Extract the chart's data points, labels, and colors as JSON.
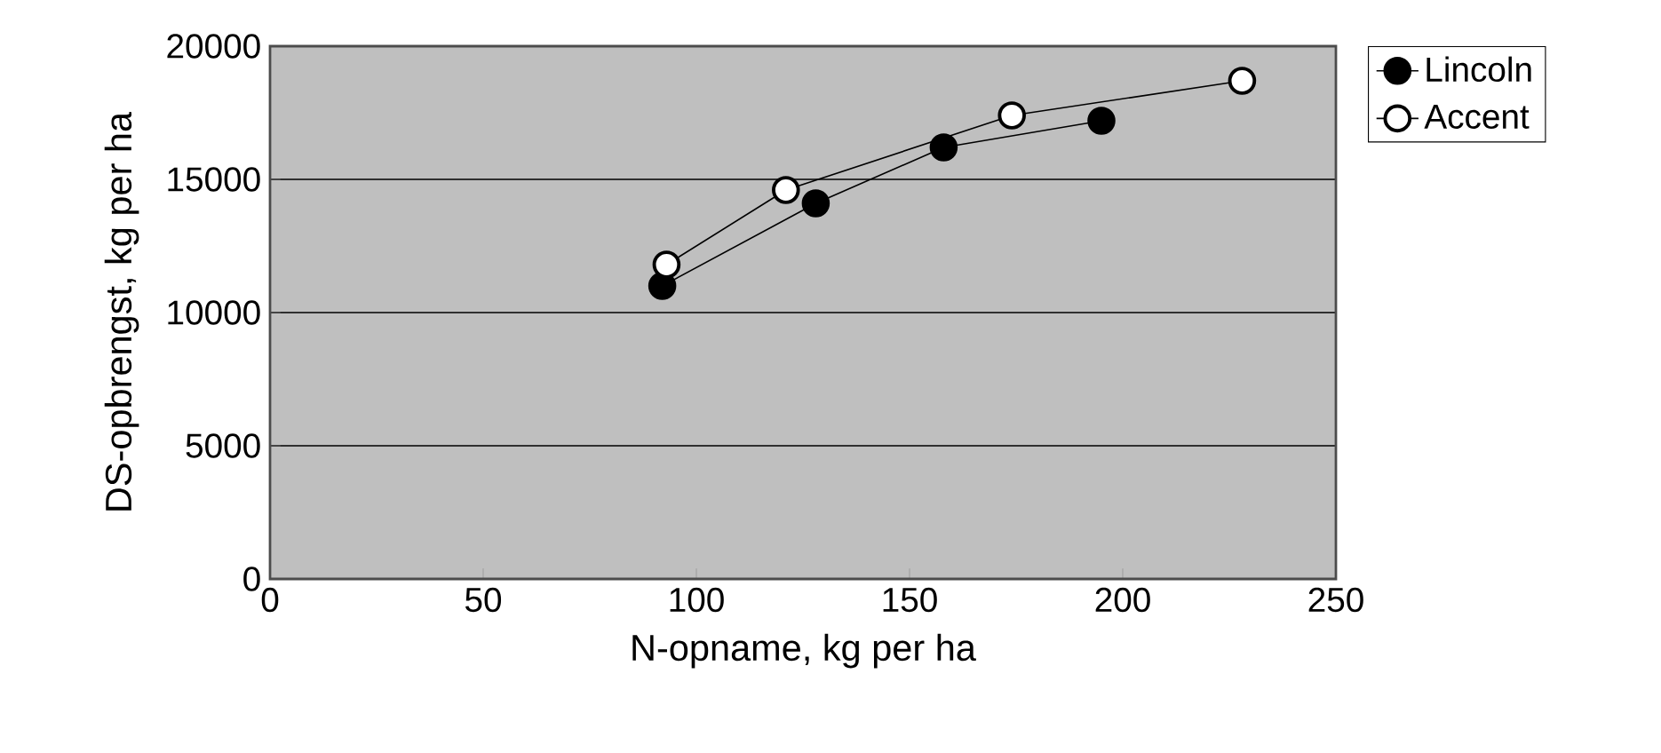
{
  "chart_data": {
    "type": "line",
    "xlabel": "N-opname, kg per ha",
    "ylabel": "DS-opbrengst, kg per ha",
    "xlim": [
      0,
      250
    ],
    "xticks": [
      0,
      50,
      100,
      150,
      200,
      250
    ],
    "ylim": [
      0,
      20000
    ],
    "yticks": [
      0,
      5000,
      10000,
      15000,
      20000
    ],
    "grid": "y",
    "legend": "right",
    "marker": "circle",
    "line_style": "solid",
    "series": [
      {
        "name": "Lincoln",
        "color": "#000000",
        "x": [
          92,
          128,
          158,
          195
        ],
        "values": [
          11000,
          14100,
          16200,
          17200
        ]
      },
      {
        "name": "Accent",
        "color": "#ffffff",
        "x": [
          93,
          121,
          174,
          228
        ],
        "values": [
          11800,
          14600,
          17400,
          18700
        ]
      }
    ]
  }
}
